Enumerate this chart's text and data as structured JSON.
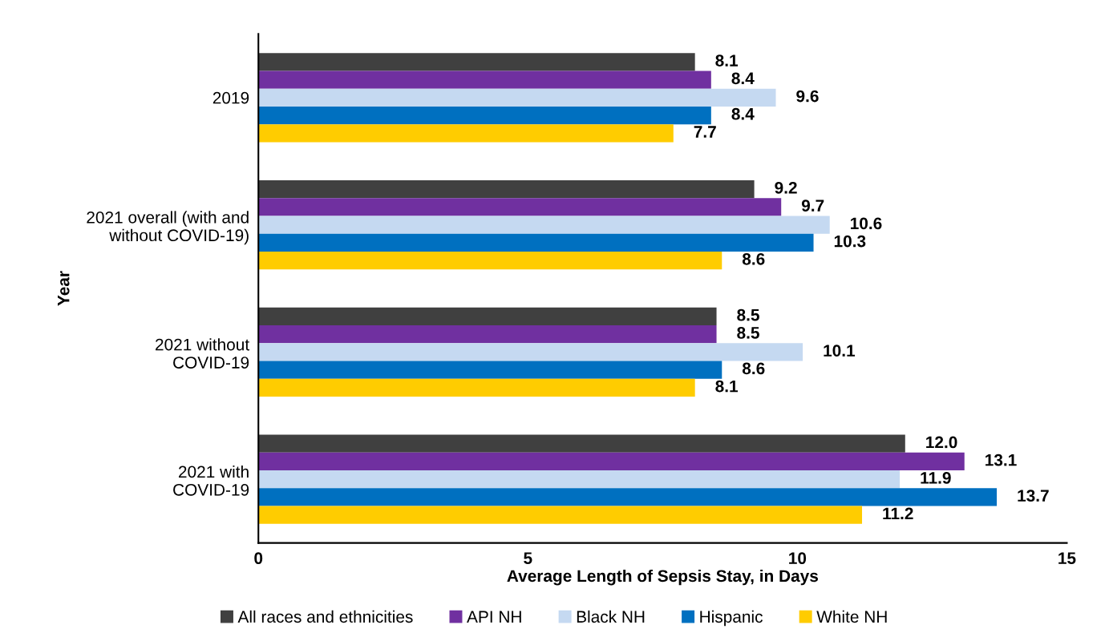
{
  "chart_data": {
    "type": "bar",
    "orientation": "horizontal",
    "xlabel": "Average Length of Sepsis Stay, in Days",
    "ylabel": "Year",
    "categories": [
      "2019",
      "2021 overall (with and\nwithout COVID-19)",
      "2021 without\nCOVID-19",
      "2021 with\nCOVID-19"
    ],
    "series": [
      {
        "name": "All races and ethnicities",
        "color": "#404040",
        "values": [
          8.1,
          9.2,
          8.5,
          12.0
        ],
        "value_labels": [
          "8.1",
          "9.2",
          "8.5",
          "12.0"
        ]
      },
      {
        "name": "API NH",
        "color": "#7030a0",
        "values": [
          8.4,
          9.7,
          8.5,
          13.1
        ],
        "value_labels": [
          "8.4",
          "9.7",
          "8.5",
          "13.1"
        ]
      },
      {
        "name": "Black NH",
        "color": "#c5d9f1",
        "values": [
          9.6,
          10.6,
          10.1,
          11.9
        ],
        "value_labels": [
          "9.6",
          "10.6",
          "10.1",
          "11.9"
        ]
      },
      {
        "name": "Hispanic",
        "color": "#0070c0",
        "values": [
          8.4,
          10.3,
          8.6,
          13.7
        ],
        "value_labels": [
          "8.4",
          "10.3",
          "8.6",
          "13.7"
        ]
      },
      {
        "name": "White NH",
        "color": "#ffcc00",
        "values": [
          7.7,
          8.6,
          8.1,
          11.2
        ],
        "value_labels": [
          "7.7",
          "8.6",
          "8.1",
          "11.2"
        ]
      }
    ],
    "xlim": [
      0,
      15
    ],
    "xticks": [
      0,
      5,
      10,
      15
    ],
    "grid": false,
    "legend": "bottom"
  }
}
